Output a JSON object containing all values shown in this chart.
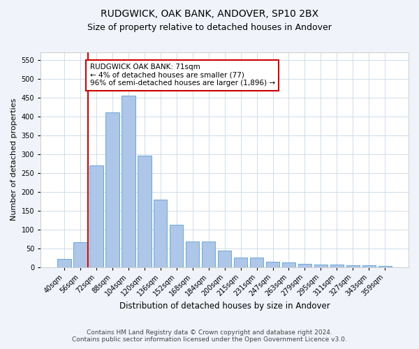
{
  "title": "RUDGWICK, OAK BANK, ANDOVER, SP10 2BX",
  "subtitle": "Size of property relative to detached houses in Andover",
  "xlabel": "Distribution of detached houses by size in Andover",
  "ylabel": "Number of detached properties",
  "categories": [
    "40sqm",
    "56sqm",
    "72sqm",
    "88sqm",
    "104sqm",
    "120sqm",
    "136sqm",
    "152sqm",
    "168sqm",
    "184sqm",
    "200sqm",
    "215sqm",
    "231sqm",
    "247sqm",
    "263sqm",
    "279sqm",
    "295sqm",
    "311sqm",
    "327sqm",
    "343sqm",
    "359sqm"
  ],
  "bar_values": [
    22,
    65,
    270,
    410,
    455,
    295,
    178,
    113,
    68,
    68,
    44,
    25,
    25,
    14,
    12,
    8,
    6,
    6,
    4,
    5,
    3
  ],
  "bar_color": "#aec6e8",
  "bar_edge_color": "#5a9fd4",
  "vline_x": 1.5,
  "vline_color": "#cc0000",
  "annotation_text": "RUDGWICK OAK BANK: 71sqm\n← 4% of detached houses are smaller (77)\n96% of semi-detached houses are larger (1,896) →",
  "annotation_box_color": "#ffffff",
  "annotation_box_edge_color": "#cc0000",
  "ylim": [
    0,
    570
  ],
  "yticks": [
    0,
    50,
    100,
    150,
    200,
    250,
    300,
    350,
    400,
    450,
    500,
    550
  ],
  "footer_line1": "Contains HM Land Registry data © Crown copyright and database right 2024.",
  "footer_line2": "Contains public sector information licensed under the Open Government Licence v3.0.",
  "bg_color": "#f0f4fa",
  "plot_bg_color": "#ffffff",
  "grid_color": "#c8d8e8",
  "title_fontsize": 10,
  "subtitle_fontsize": 9,
  "xlabel_fontsize": 8.5,
  "ylabel_fontsize": 8,
  "tick_fontsize": 7,
  "annotation_fontsize": 7.5,
  "footer_fontsize": 6.5
}
